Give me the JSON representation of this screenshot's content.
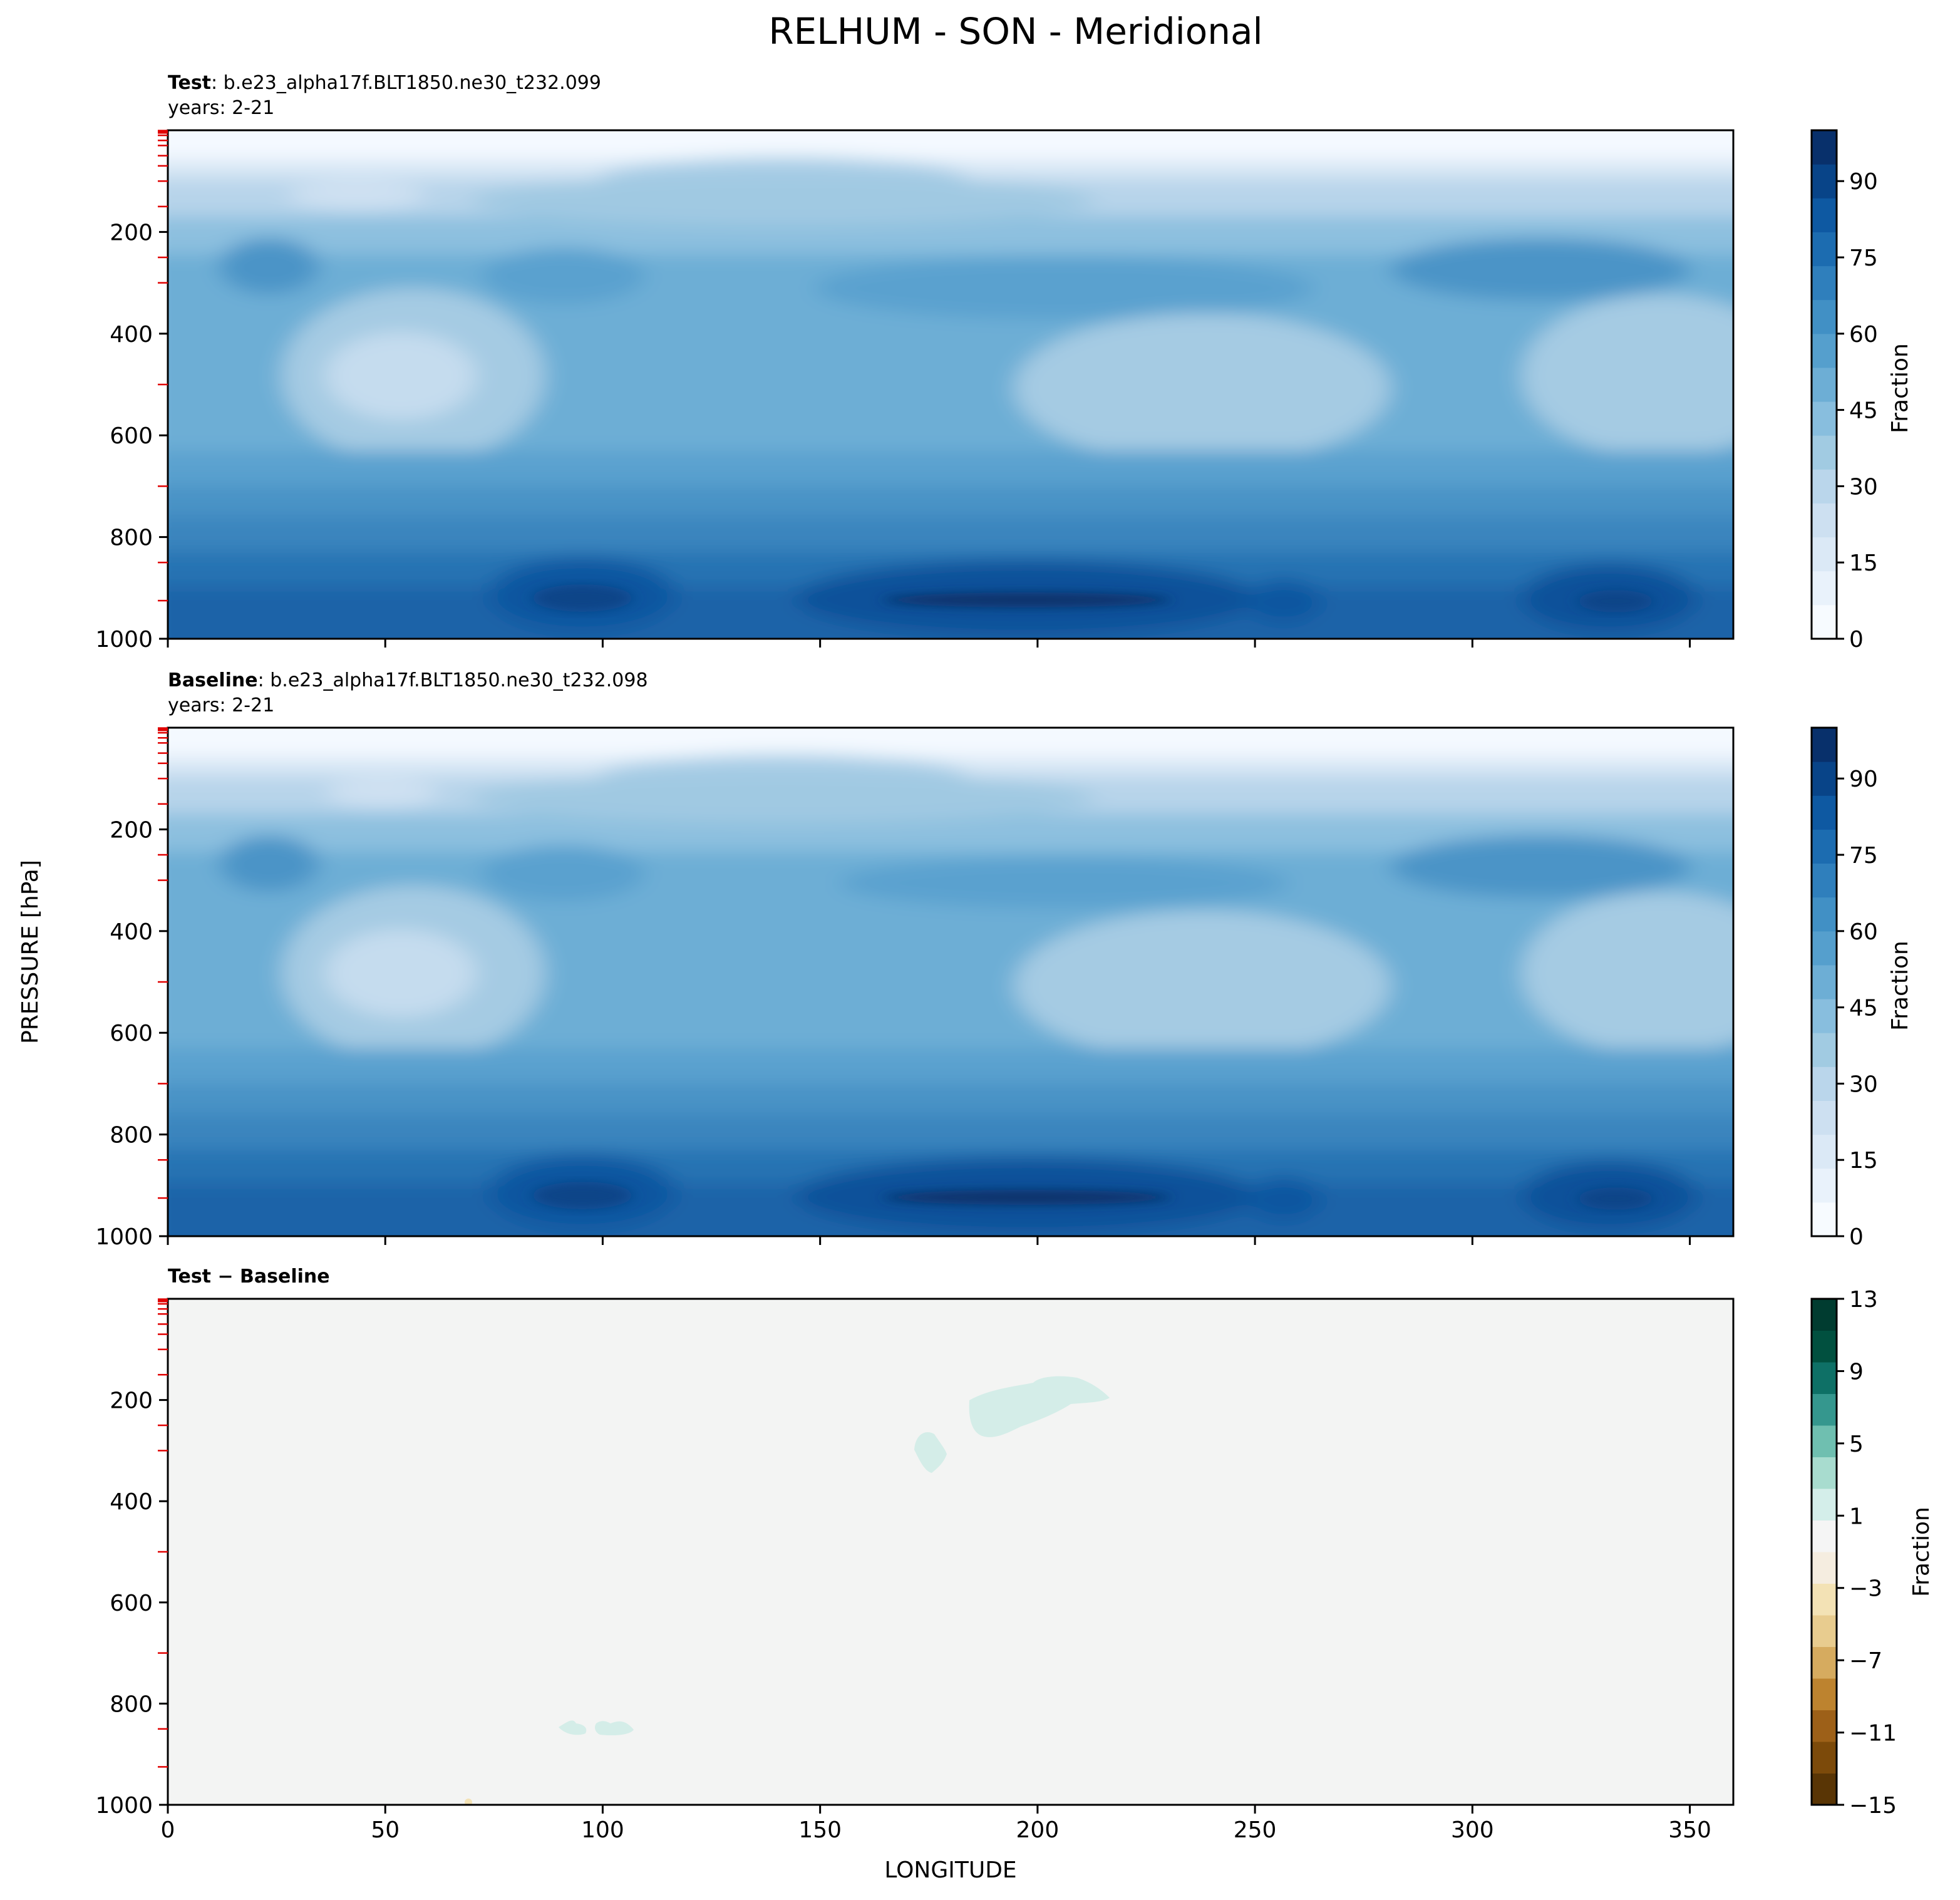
{
  "figure": {
    "title": "RELHUM - SON - Meridional",
    "ylabel": "PRESSURE [hPa]",
    "xlabel": "LONGITUDE"
  },
  "colors": {
    "blues": [
      "#f7fbff",
      "#e9f2fb",
      "#dbe9f6",
      "#cde0f1",
      "#bad6eb",
      "#a1cbe2",
      "#88bede",
      "#6daed5",
      "#559fcd",
      "#4190c5",
      "#2f7fbc",
      "#1c6cb0",
      "#0e59a2",
      "#084488",
      "#08306b"
    ],
    "diff": [
      "#593505",
      "#7c4a0a",
      "#9d6018",
      "#bd832f",
      "#d6ab5f",
      "#e8cc8f",
      "#f3e2b5",
      "#f5ede0",
      "#f5f5f5",
      "#d4eeea",
      "#a8dccf",
      "#6fbfb0",
      "#35978e",
      "#0e7066",
      "#01503f",
      "#003c30"
    ],
    "background_diff": "#f3f4f3",
    "minor_tick": "#e00000"
  },
  "chart_data": [
    {
      "type": "heatmap",
      "panel": "test",
      "title_bold": "Test",
      "title_rest": ": b.e23_alpha17f.BLT1850.ne30_t232.099",
      "subtitle": "years: 2-21",
      "xlim": [
        0,
        360
      ],
      "ylim": [
        1000,
        0
      ],
      "yticks": [
        200,
        400,
        600,
        800,
        1000
      ],
      "colorbar": {
        "label": "Fraction",
        "ticks": [
          0,
          15,
          30,
          45,
          60,
          75,
          90
        ],
        "range": [
          0,
          100
        ],
        "levels": 15
      },
      "values_summary": "relative humidity (Fraction 0-100) vs longitude and pressure"
    },
    {
      "type": "heatmap",
      "panel": "baseline",
      "title_bold": "Baseline",
      "title_rest": ": b.e23_alpha17f.BLT1850.ne30_t232.098",
      "subtitle": "years: 2-21",
      "xlim": [
        0,
        360
      ],
      "ylim": [
        1000,
        0
      ],
      "yticks": [
        200,
        400,
        600,
        800,
        1000
      ],
      "colorbar": {
        "label": "Fraction",
        "ticks": [
          0,
          15,
          30,
          45,
          60,
          75,
          90
        ],
        "range": [
          0,
          100
        ],
        "levels": 15
      }
    },
    {
      "type": "heatmap",
      "panel": "difference",
      "title_bold": "Test − Baseline",
      "xlim": [
        0,
        360
      ],
      "ylim": [
        1000,
        0
      ],
      "xticks": [
        0,
        50,
        100,
        150,
        200,
        250,
        300,
        350
      ],
      "yticks": [
        200,
        400,
        600,
        800,
        1000
      ],
      "colorbar": {
        "label": "Fraction",
        "ticks": [
          13,
          9,
          5,
          1,
          -3,
          -7,
          -11,
          -15
        ],
        "range": [
          -15,
          13
        ],
        "levels": 16
      },
      "features": [
        {
          "lon_range": [
            168,
            178
          ],
          "p_range": [
            240,
            340
          ],
          "value_range": [
            1,
            3
          ]
        },
        {
          "lon_range": [
            182,
            217
          ],
          "p_range": [
            145,
            285
          ],
          "value_range": [
            1,
            3
          ]
        },
        {
          "lon_range": [
            92,
            107
          ],
          "p_range": [
            825,
            860
          ],
          "value_range": [
            1,
            3
          ]
        }
      ]
    }
  ]
}
